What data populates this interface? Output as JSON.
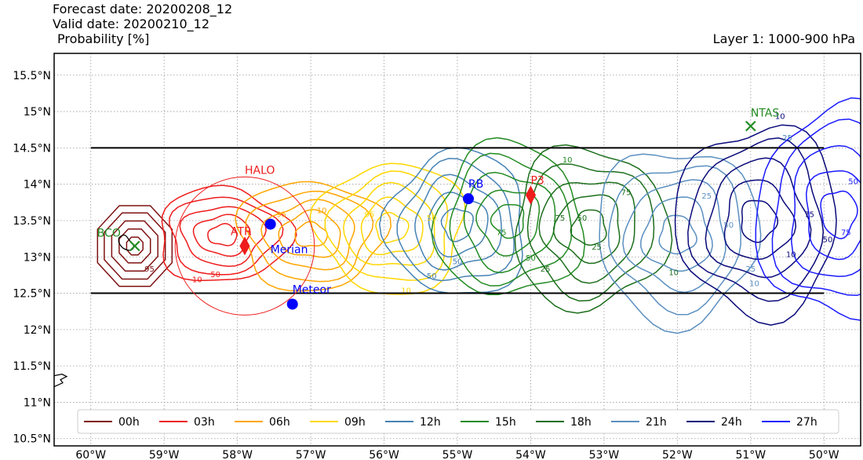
{
  "header": {
    "forecast_date": "Forecast date: 20200208_12",
    "valid_date": "Valid date: 20200210_12",
    "quantity": "Probability [%]",
    "layer": "Layer 1: 1000-900 hPa"
  },
  "chart_data": {
    "type": "contour map",
    "xlim": [
      -60.5,
      -49.5
    ],
    "ylim": [
      10.4,
      15.8
    ],
    "x_ticks": [
      {
        "v": -60,
        "label": "60°W"
      },
      {
        "v": -59,
        "label": "59°W"
      },
      {
        "v": -58,
        "label": "58°W"
      },
      {
        "v": -57,
        "label": "57°W"
      },
      {
        "v": -56,
        "label": "56°W"
      },
      {
        "v": -55,
        "label": "55°W"
      },
      {
        "v": -54,
        "label": "54°W"
      },
      {
        "v": -53,
        "label": "53°W"
      },
      {
        "v": -52,
        "label": "52°W"
      },
      {
        "v": -51,
        "label": "51°W"
      },
      {
        "v": -50,
        "label": "50°W"
      }
    ],
    "y_ticks": [
      {
        "v": 10.5,
        "label": "10.5°N"
      },
      {
        "v": 11,
        "label": "11°N"
      },
      {
        "v": 11.5,
        "label": "11.5°N"
      },
      {
        "v": 12,
        "label": "12°N"
      },
      {
        "v": 12.5,
        "label": "12.5°N"
      },
      {
        "v": 13,
        "label": "13°N"
      },
      {
        "v": 13.5,
        "label": "13.5°N"
      },
      {
        "v": 14,
        "label": "14°N"
      },
      {
        "v": 14.5,
        "label": "14.5°N"
      },
      {
        "v": 15,
        "label": "15°N"
      },
      {
        "v": 15.5,
        "label": "15.5°N"
      }
    ],
    "grid": true,
    "contour_levels": [
      10,
      25,
      50,
      75,
      95
    ],
    "series": [
      {
        "name": "00h",
        "color": "#7f1212",
        "lon": -59.4,
        "lat": 13.15,
        "rx": 0.55,
        "ry": 0.6,
        "shape": "octagon"
      },
      {
        "name": "03h",
        "color": "#ee1c1c",
        "lon": -58.2,
        "lat": 13.3,
        "rx": 0.9,
        "ry": 0.65
      },
      {
        "name": "06h",
        "color": "#ffa500",
        "lon": -57.0,
        "lat": 13.3,
        "rx": 1.0,
        "ry": 0.75
      },
      {
        "name": "09h",
        "color": "#ffd700",
        "lon": -55.9,
        "lat": 13.4,
        "rx": 1.0,
        "ry": 0.9
      },
      {
        "name": "12h",
        "color": "#4682b4",
        "lon": -55.0,
        "lat": 13.45,
        "rx": 0.95,
        "ry": 1.0
      },
      {
        "name": "15h",
        "color": "#228b22",
        "lon": -54.3,
        "lat": 13.5,
        "rx": 1.0,
        "ry": 1.05
      },
      {
        "name": "18h",
        "color": "#1c6e1c",
        "lon": -53.2,
        "lat": 13.4,
        "rx": 1.05,
        "ry": 1.1
      },
      {
        "name": "21h",
        "color": "#5b8fc0",
        "lon": -52.0,
        "lat": 13.3,
        "rx": 1.1,
        "ry": 1.2
      },
      {
        "name": "24h",
        "color": "#0a0a7a",
        "lon": -50.9,
        "lat": 13.5,
        "rx": 1.1,
        "ry": 1.3
      },
      {
        "name": "27h",
        "color": "#1a1aff",
        "lon": -49.8,
        "lat": 13.6,
        "rx": 1.1,
        "ry": 1.45
      }
    ],
    "contour_labels": [
      {
        "text": "95",
        "lon": -59.2,
        "lat": 12.8,
        "color": "#7f1212"
      },
      {
        "text": "10",
        "lon": -58.55,
        "lat": 12.65,
        "color": "#ee1c1c"
      },
      {
        "text": "50",
        "lon": -58.3,
        "lat": 12.72,
        "color": "#ee1c1c"
      },
      {
        "text": "95",
        "lon": -57.4,
        "lat": 13.55,
        "color": "#ffa500"
      },
      {
        "text": "10",
        "lon": -56.85,
        "lat": 13.6,
        "color": "#ffa500"
      },
      {
        "text": "95",
        "lon": -56.2,
        "lat": 13.55,
        "color": "#ffd700"
      },
      {
        "text": "10",
        "lon": -55.7,
        "lat": 12.5,
        "color": "#ffd700"
      },
      {
        "text": "50",
        "lon": -55.35,
        "lat": 12.7,
        "color": "#4682b4"
      },
      {
        "text": "50",
        "lon": -55.35,
        "lat": 13.5,
        "color": "#ffd700"
      },
      {
        "text": "50",
        "lon": -55.0,
        "lat": 12.9,
        "color": "#4682b4"
      },
      {
        "text": "10",
        "lon": -53.5,
        "lat": 14.3,
        "color": "#228b22"
      },
      {
        "text": "75",
        "lon": -54.4,
        "lat": 13.3,
        "color": "#228b22"
      },
      {
        "text": "50",
        "lon": -54.0,
        "lat": 12.95,
        "color": "#228b22"
      },
      {
        "text": "75",
        "lon": -53.6,
        "lat": 13.5,
        "color": "#1c6e1c"
      },
      {
        "text": "50",
        "lon": -53.3,
        "lat": 13.5,
        "color": "#1c6e1c"
      },
      {
        "text": "25",
        "lon": -53.1,
        "lat": 13.1,
        "color": "#1c6e1c"
      },
      {
        "text": "25",
        "lon": -53.8,
        "lat": 12.8,
        "color": "#1c6e1c"
      },
      {
        "text": "75",
        "lon": -52.7,
        "lat": 13.85,
        "color": "#1c6e1c"
      },
      {
        "text": "10",
        "lon": -52.05,
        "lat": 12.75,
        "color": "#1c6e1c"
      },
      {
        "text": "25",
        "lon": -51.6,
        "lat": 13.8,
        "color": "#5b8fc0"
      },
      {
        "text": "50",
        "lon": -51.3,
        "lat": 13.4,
        "color": "#5b8fc0"
      },
      {
        "text": "25",
        "lon": -51.0,
        "lat": 12.8,
        "color": "#5b8fc0"
      },
      {
        "text": "10",
        "lon": -50.95,
        "lat": 12.6,
        "color": "#5b8fc0"
      },
      {
        "text": "10",
        "lon": -50.45,
        "lat": 13.0,
        "color": "#0a0a7a"
      },
      {
        "text": "75",
        "lon": -50.2,
        "lat": 13.55,
        "color": "#0a0a7a"
      },
      {
        "text": "10",
        "lon": -50.6,
        "lat": 14.9,
        "color": "#0a0a7a"
      },
      {
        "text": "25",
        "lon": -50.5,
        "lat": 14.6,
        "color": "#4682b4"
      },
      {
        "text": "50",
        "lon": -49.6,
        "lat": 14.0,
        "color": "#1a1aff"
      },
      {
        "text": "50",
        "lon": -49.95,
        "lat": 13.2,
        "color": "#0a0a7a"
      },
      {
        "text": "75",
        "lon": -49.7,
        "lat": 13.3,
        "color": "#1a1aff"
      }
    ],
    "domain_box": {
      "lon_min": -60,
      "lon_max": -50,
      "lat_min": 12.5,
      "lat_max": 14.5
    },
    "halo_circle": {
      "lon": -57.9,
      "lat": 13.15,
      "r": 0.95,
      "label": "HALO",
      "color": "#ee1c1c"
    },
    "markers": [
      {
        "name": "BCO",
        "lon": -59.4,
        "lat": 13.15,
        "symbol": "x",
        "color": "#228b22"
      },
      {
        "name": "NTAS",
        "lon": -51.0,
        "lat": 14.8,
        "symbol": "x",
        "color": "#228b22"
      },
      {
        "name": "ATR",
        "lon": -57.9,
        "lat": 13.15,
        "symbol": "diamond",
        "color": "#ee1c1c"
      },
      {
        "name": "P3",
        "lon": -54.0,
        "lat": 13.85,
        "symbol": "diamond",
        "color": "#ee1c1c"
      },
      {
        "name": "Merian",
        "lon": -57.55,
        "lat": 13.45,
        "symbol": "dot",
        "color": "#0000ff"
      },
      {
        "name": "Meteor",
        "lon": -57.25,
        "lat": 12.35,
        "symbol": "dot",
        "color": "#0000ff"
      },
      {
        "name": "RB",
        "lon": -54.85,
        "lat": 13.8,
        "symbol": "dot",
        "color": "#0000ff"
      }
    ],
    "legend_position": "lower center"
  }
}
